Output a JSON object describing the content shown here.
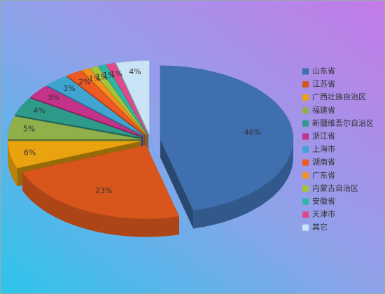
{
  "chart_data": {
    "type": "pie",
    "categories": [
      "山东省",
      "江苏省",
      "广西壮族自治区",
      "福建省",
      "新疆维吾尔自治区",
      "浙江省",
      "上海市",
      "湖南省",
      "广东省",
      "内蒙古自治区",
      "安徽省",
      "天津市",
      "其它"
    ],
    "values": [
      46,
      23,
      6,
      5,
      4,
      3,
      3,
      2,
      1,
      1,
      1,
      1,
      4
    ],
    "value_labels": [
      "46%",
      "23%",
      "6%",
      "5%",
      "4%",
      "3%",
      "3%",
      "2%",
      "1%",
      "1%",
      "1%",
      "1%",
      "4%"
    ],
    "colors": [
      "#3f6fae",
      "#d8561c",
      "#e8a30e",
      "#8fb04a",
      "#2e9a8a",
      "#c4338a",
      "#3fa4d0",
      "#ee5a22",
      "#f5901e",
      "#a6c43a",
      "#2fb5a5",
      "#e8468c",
      "#c9e4f6"
    ],
    "legend": "right"
  }
}
